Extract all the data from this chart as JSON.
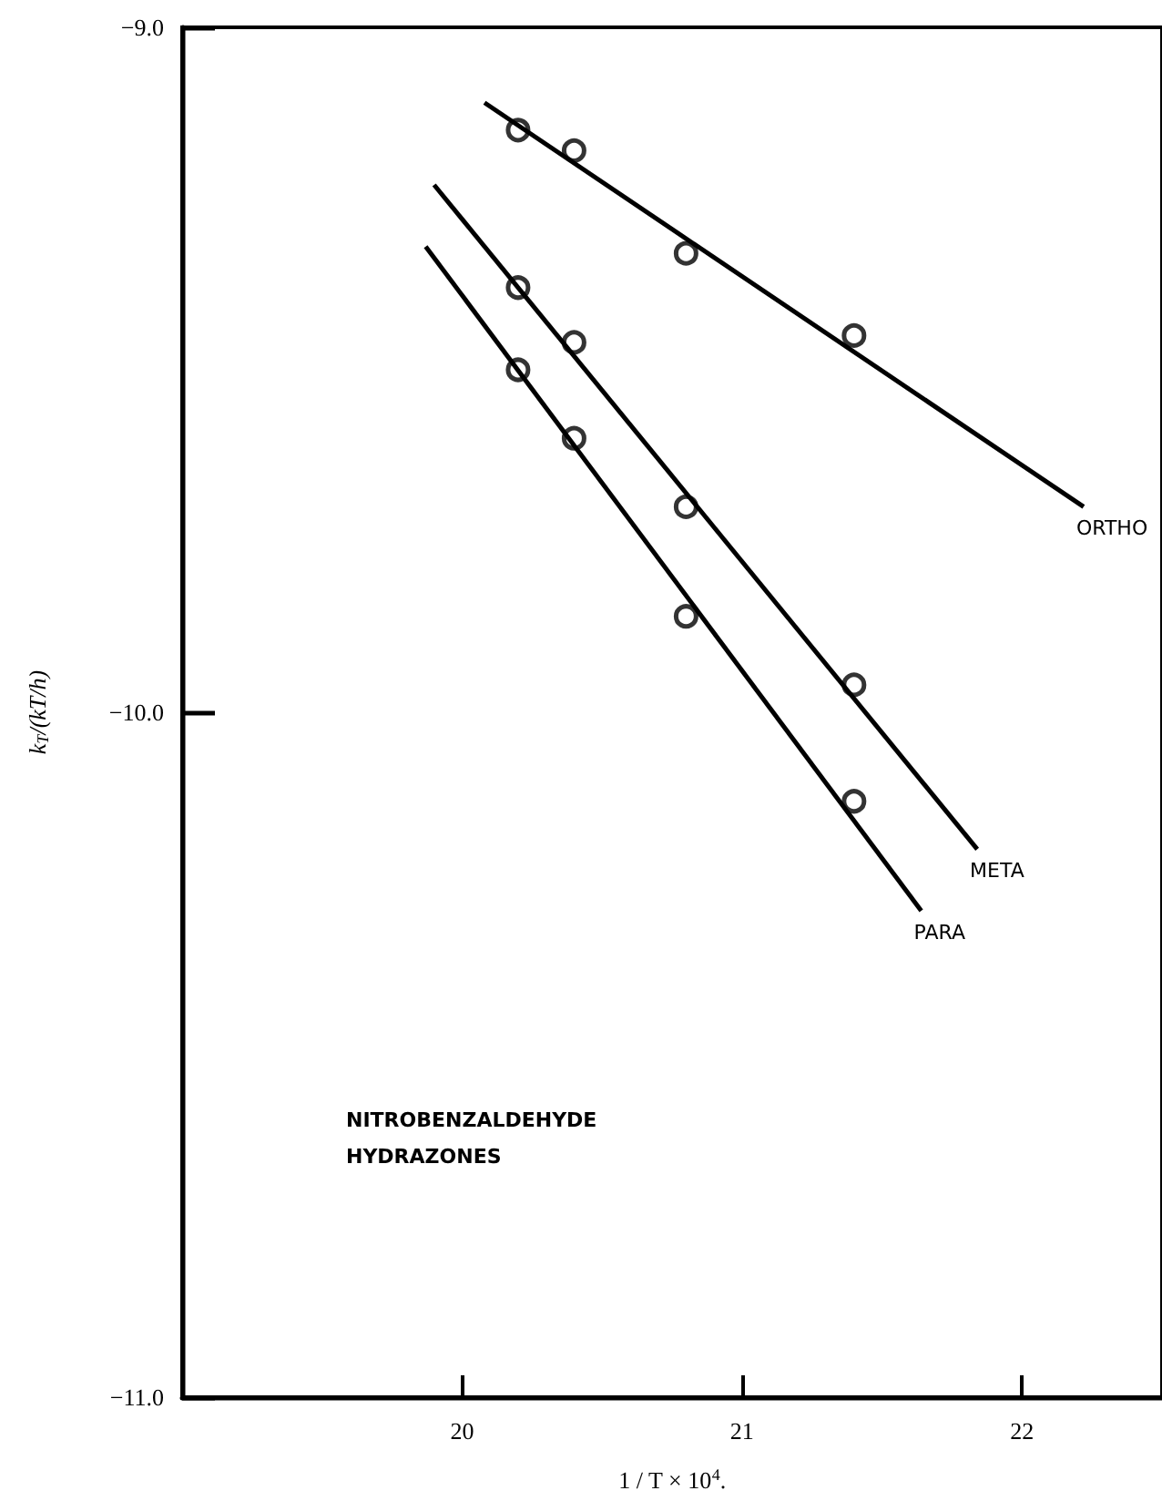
{
  "chart_data": {
    "type": "scatter",
    "xlabel": "1 / T × 10$^{4}$.",
    "ylabel": "k$_{T}$/(kT/h)",
    "xlim": [
      19,
      22.5
    ],
    "ylim": [
      -11,
      -9
    ],
    "xticks": [
      20,
      21,
      22
    ],
    "yticks": [
      {
        "value": -11,
        "label": "−11.0"
      },
      {
        "value": -10,
        "label": "−10.0"
      },
      {
        "value": -9,
        "label": "−9.0"
      }
    ],
    "grid": false,
    "legend": false,
    "marker": "circle",
    "annotations": [
      "NITROBENZALDEHYDE HYDRAZONES"
    ],
    "series": [
      {
        "color": "#000000",
        "x": [
          20.2,
          20.4,
          20.8,
          21.4
        ],
        "values": [
          -9.15,
          -9.18,
          -9.33,
          -9.45
        ]
      },
      {
        "color": "#000000",
        "x": [
          20.2,
          20.4,
          20.8,
          21.4
        ],
        "values": [
          -9.38,
          -9.46,
          -9.7,
          -9.96
        ]
      },
      {
        "color": "#000000",
        "x": [
          20.2,
          20.4,
          20.8,
          21.4
        ],
        "values": [
          -9.5,
          -9.6,
          -9.86,
          -10.13
        ]
      },
      {
        "type": "line",
        "name": "ORTHO",
        "color": "#000000",
        "marker": "none",
        "x": [
          20.08,
          22.22
        ],
        "values": [
          -9.11,
          -9.7
        ]
      },
      {
        "type": "line",
        "name": "META",
        "color": "#000000",
        "marker": "none",
        "x": [
          19.9,
          21.84
        ],
        "values": [
          -9.23,
          -10.2
        ]
      },
      {
        "type": "line",
        "name": "PARA",
        "color": "#000000",
        "marker": "none",
        "x": [
          19.87,
          21.64
        ],
        "values": [
          -9.32,
          -10.29
        ]
      }
    ]
  }
}
